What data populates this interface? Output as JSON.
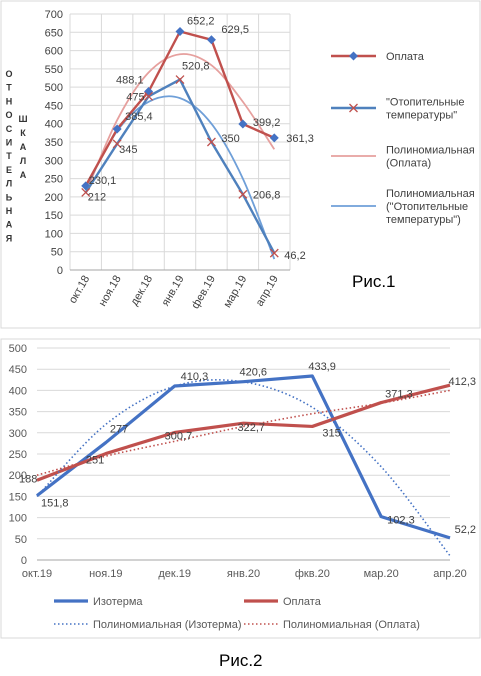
{
  "figures": [
    {
      "caption": "Рис.1"
    },
    {
      "caption": "Рис.2"
    }
  ],
  "chart_data": [
    {
      "type": "line",
      "ylabel": "ОТНОСИТЕЛЬНАЯ ШКАЛА",
      "ylim": [
        0,
        700
      ],
      "ytick_step": 50,
      "grid": true,
      "legend_position": "right",
      "categories": [
        "окт.18",
        "ноя.18",
        "дек.18",
        "янв.19",
        "фев.19",
        "мар.19",
        "апр.19"
      ],
      "series": [
        {
          "name": "Оплата",
          "color": "#c0504d",
          "marker": "diamond",
          "marker_color": "#4472c4",
          "values": [
            230.1,
            385.4,
            488.1,
            652.2,
            629.5,
            399.2,
            361.3
          ],
          "labels": [
            "230,1",
            "385,4",
            "488,1",
            "652,2",
            "629,5",
            "399,2",
            "361,3"
          ]
        },
        {
          "name": "\"Отопительные температуры\"",
          "color": "#4f81bd",
          "marker": "x",
          "marker_color": "#c0504d",
          "values": [
            212,
            345,
            475,
            520.8,
            350,
            206.8,
            46.2
          ],
          "labels": [
            "212",
            "345",
            "475",
            "520,8",
            "350",
            "206,8",
            "46,2"
          ]
        },
        {
          "name": "Полиномиальная (Оплата)",
          "color": "#e6a09e",
          "style": "trend",
          "values": [
            210,
            410,
            540,
            590,
            560,
            460,
            330
          ]
        },
        {
          "name": "Полиномиальная (\"Отопительные температуры\")",
          "color": "#6f9fd8",
          "style": "trend",
          "values": [
            225,
            380,
            460,
            470,
            400,
            250,
            30
          ]
        }
      ]
    },
    {
      "type": "line",
      "ylim": [
        0,
        500
      ],
      "ytick_step": 50,
      "grid": true,
      "legend_position": "bottom",
      "categories": [
        "окт.19",
        "ноя.19",
        "дек.19",
        "янв.20",
        "фкв.20",
        "мар.20",
        "апр.20"
      ],
      "series": [
        {
          "name": "Изотерма",
          "color": "#4472c4",
          "values": [
            151.8,
            277,
            410.3,
            420.6,
            433.9,
            102.3,
            52.2
          ],
          "labels": [
            "151,8",
            "277",
            "410,3",
            "420,6",
            "433,9",
            "102,3",
            "52,2"
          ]
        },
        {
          "name": "Оплата",
          "color": "#c0504d",
          "values": [
            188,
            251,
            300.7,
            322.7,
            315,
            371.3,
            412.3
          ],
          "labels": [
            "188",
            "251",
            "300,7",
            "322,7",
            "315",
            "371,3",
            "412,3"
          ]
        },
        {
          "name": "Полиномиальная (Изотерма)",
          "color": "#4472c4",
          "style": "dotted",
          "values": [
            150,
            320,
            410,
            420,
            360,
            220,
            10
          ]
        },
        {
          "name": "Полиномиальная (Оплата)",
          "color": "#c0504d",
          "style": "dotted",
          "values": [
            200,
            245,
            280,
            315,
            345,
            370,
            400
          ]
        }
      ]
    }
  ]
}
